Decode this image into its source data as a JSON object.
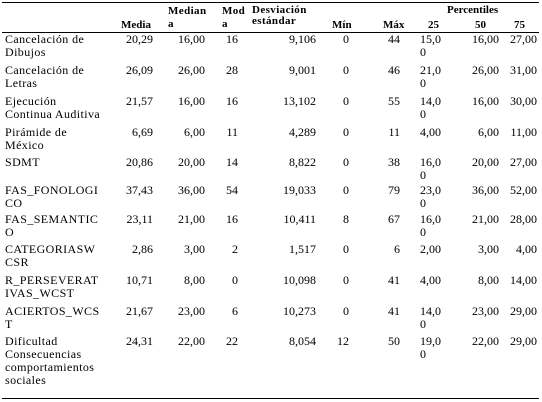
{
  "headers": {
    "media": "Media",
    "mediana": "Median\na",
    "moda": "Mod\na",
    "desviacion": "Desviación\nestándar",
    "min": "Mín",
    "max": "Máx",
    "percentiles": "Percentiles",
    "p25": "25",
    "p50": "50",
    "p75": "75"
  },
  "rows": [
    {
      "label": "Cancelación de\nDibujos",
      "media": "20,29",
      "mediana": "16,00",
      "moda": "16",
      "desv": "9,106",
      "min": "0",
      "max": "44",
      "p25": "15,0\n0",
      "p50": "16,00",
      "p75": "27,00"
    },
    {
      "label": "Cancelación de\nLetras",
      "media": "26,09",
      "mediana": "26,00",
      "moda": "28",
      "desv": "9,001",
      "min": "0",
      "max": "46",
      "p25": "21,0\n0",
      "p50": "26,00",
      "p75": "31,00"
    },
    {
      "label": "Ejecución\nContinua Auditiva",
      "media": "21,57",
      "mediana": "16,00",
      "moda": "16",
      "desv": "13,102",
      "min": "0",
      "max": "55",
      "p25": "14,0\n0",
      "p50": "16,00",
      "p75": "30,00"
    },
    {
      "label": "Pirámide de\nMéxico",
      "media": "6,69",
      "mediana": "6,00",
      "moda": "11",
      "desv": "4,289",
      "min": "0",
      "max": "11",
      "p25": "4,00",
      "p50": "6,00",
      "p75": "11,00"
    },
    {
      "label": "SDMT",
      "media": "20,86",
      "mediana": "20,00",
      "moda": "14",
      "desv": "8,822",
      "min": "0",
      "max": "38",
      "p25": "16,0\n0",
      "p50": "20,00",
      "p75": "27,00"
    },
    {
      "label": "FAS_FONOLOGI\nCO",
      "media": "37,43",
      "mediana": "36,00",
      "moda": "54",
      "desv": "19,033",
      "min": "0",
      "max": "79",
      "p25": "23,0\n0",
      "p50": "36,00",
      "p75": "52,00"
    },
    {
      "label": "FAS_SEMANTIC\nO",
      "media": "23,11",
      "mediana": "21,00",
      "moda": "16",
      "desv": "10,411",
      "min": "8",
      "max": "67",
      "p25": "16,0\n0",
      "p50": "21,00",
      "p75": "28,00"
    },
    {
      "label": "CATEGORIASW\nCSR",
      "media": "2,86",
      "mediana": "3,00",
      "moda": "2",
      "desv": "1,517",
      "min": "0",
      "max": "6",
      "p25": "2,00",
      "p50": "3,00",
      "p75": "4,00"
    },
    {
      "label": "R_PERSEVERAT\nIVAS_WCST",
      "media": "10,71",
      "mediana": "8,00",
      "moda": "0",
      "desv": "10,098",
      "min": "0",
      "max": "41",
      "p25": "4,00",
      "p50": "8,00",
      "p75": "14,00"
    },
    {
      "label": "ACIERTOS_WCS\nT",
      "media": "21,67",
      "mediana": "23,00",
      "moda": "6",
      "desv": "10,273",
      "min": "0",
      "max": "41",
      "p25": "14,0\n0",
      "p50": "23,00",
      "p75": "29,00"
    },
    {
      "label": "Dificultad\nConsecuencias\ncomportamientos\nsociales",
      "media": "24,31",
      "mediana": "22,00",
      "moda": "22",
      "desv": "8,054",
      "min": "12",
      "max": "50",
      "p25": "19,0\n0",
      "p50": "22,00",
      "p75": "29,00"
    }
  ]
}
